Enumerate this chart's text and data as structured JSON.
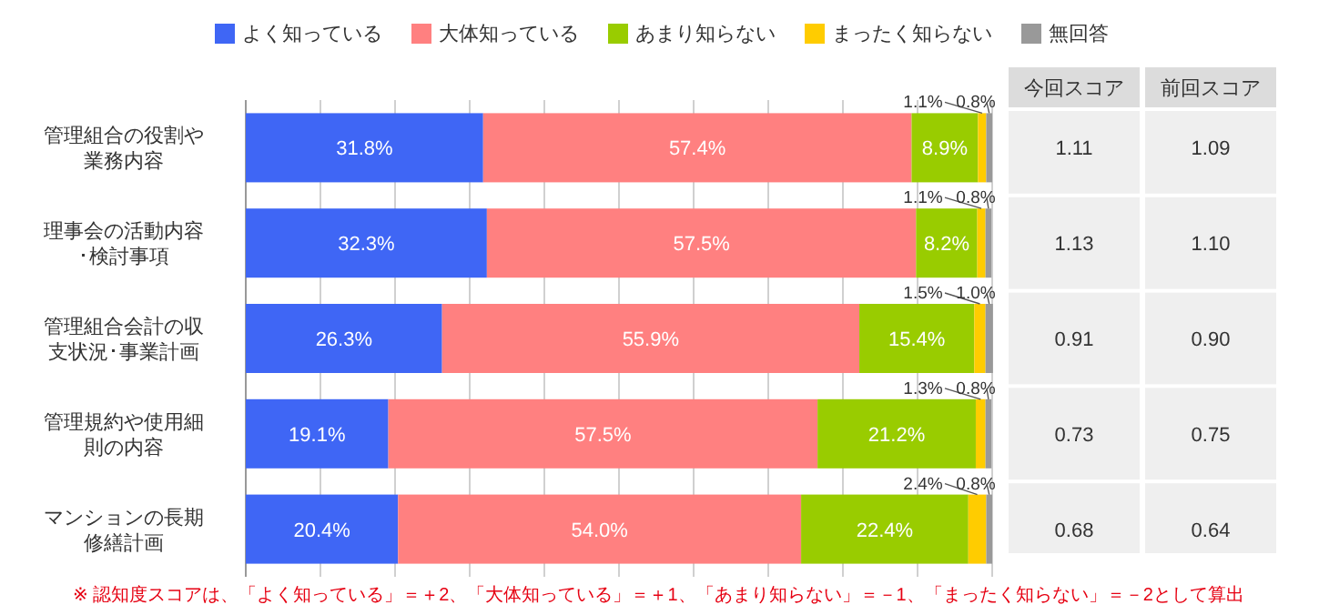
{
  "chart_data": [
    {
      "type": "bar",
      "orientation": "horizontal",
      "stacked": true,
      "categories": [
        "管理組合の役割や業務内容",
        "理事会の活動内容･検討事項",
        "管理組合会計の収支状況･事業計画",
        "管理規約や使用細則の内容",
        "マンションの長期修繕計画"
      ],
      "series": [
        {
          "name": "よく知っている",
          "color": "#3f66f5",
          "values": [
            31.8,
            32.3,
            26.3,
            19.1,
            20.4
          ],
          "value_labels": [
            "31.8%",
            "32.3%",
            "26.3%",
            "19.1%",
            "20.4%"
          ]
        },
        {
          "name": "大体知っている",
          "color": "#ff8080",
          "values": [
            57.4,
            57.5,
            55.9,
            57.5,
            54.0
          ],
          "value_labels": [
            "57.4%",
            "57.5%",
            "55.9%",
            "57.5%",
            "54.0%"
          ]
        },
        {
          "name": "あまり知らない",
          "color": "#99cc00",
          "values": [
            8.9,
            8.2,
            15.4,
            21.2,
            22.4
          ],
          "value_labels": [
            "8.9%",
            "8.2%",
            "15.4%",
            "21.2%",
            "22.4%"
          ]
        },
        {
          "name": "まったく知らない",
          "color": "#ffcc00",
          "values": [
            1.1,
            1.1,
            1.5,
            1.3,
            2.4
          ],
          "value_labels": [
            "1.1%",
            "1.1%",
            "1.5%",
            "1.3%",
            "2.4%"
          ]
        },
        {
          "name": "無回答",
          "color": "#999999",
          "values": [
            0.8,
            0.8,
            1.0,
            0.8,
            0.8
          ],
          "value_labels": [
            "0.8%",
            "0.8%",
            "1.0%",
            "0.8%",
            "0.8%"
          ]
        }
      ],
      "xlim": [
        0,
        100
      ],
      "xticks": [
        {
          "value": 0,
          "label": null
        },
        {
          "value": 10,
          "label": null
        },
        {
          "value": 20,
          "label": null
        },
        {
          "value": 30,
          "label": null
        },
        {
          "value": 40,
          "label": null
        },
        {
          "value": 50,
          "label": null
        },
        {
          "value": 60,
          "label": null
        },
        {
          "value": 70,
          "label": null
        },
        {
          "value": 80,
          "label": null
        },
        {
          "value": 90,
          "label": null
        },
        {
          "value": 100,
          "label": null
        }
      ],
      "tick_labels": "y",
      "grid": "x",
      "legend": "top",
      "annotations": [
        "※ 認知度スコアは、「よく知っている」＝＋2、「大体知っている」＝＋1、「あまり知らない」＝－1、「まったく知らない」＝－2として算出"
      ]
    },
    {
      "type": "other",
      "categories": [
        "今回スコア",
        "前回スコア"
      ],
      "annotations": [
        "1.11",
        "1.09",
        "1.13",
        "1.10",
        "0.91",
        "0.90",
        "0.73",
        "0.75",
        "0.68",
        "0.64"
      ]
    }
  ]
}
